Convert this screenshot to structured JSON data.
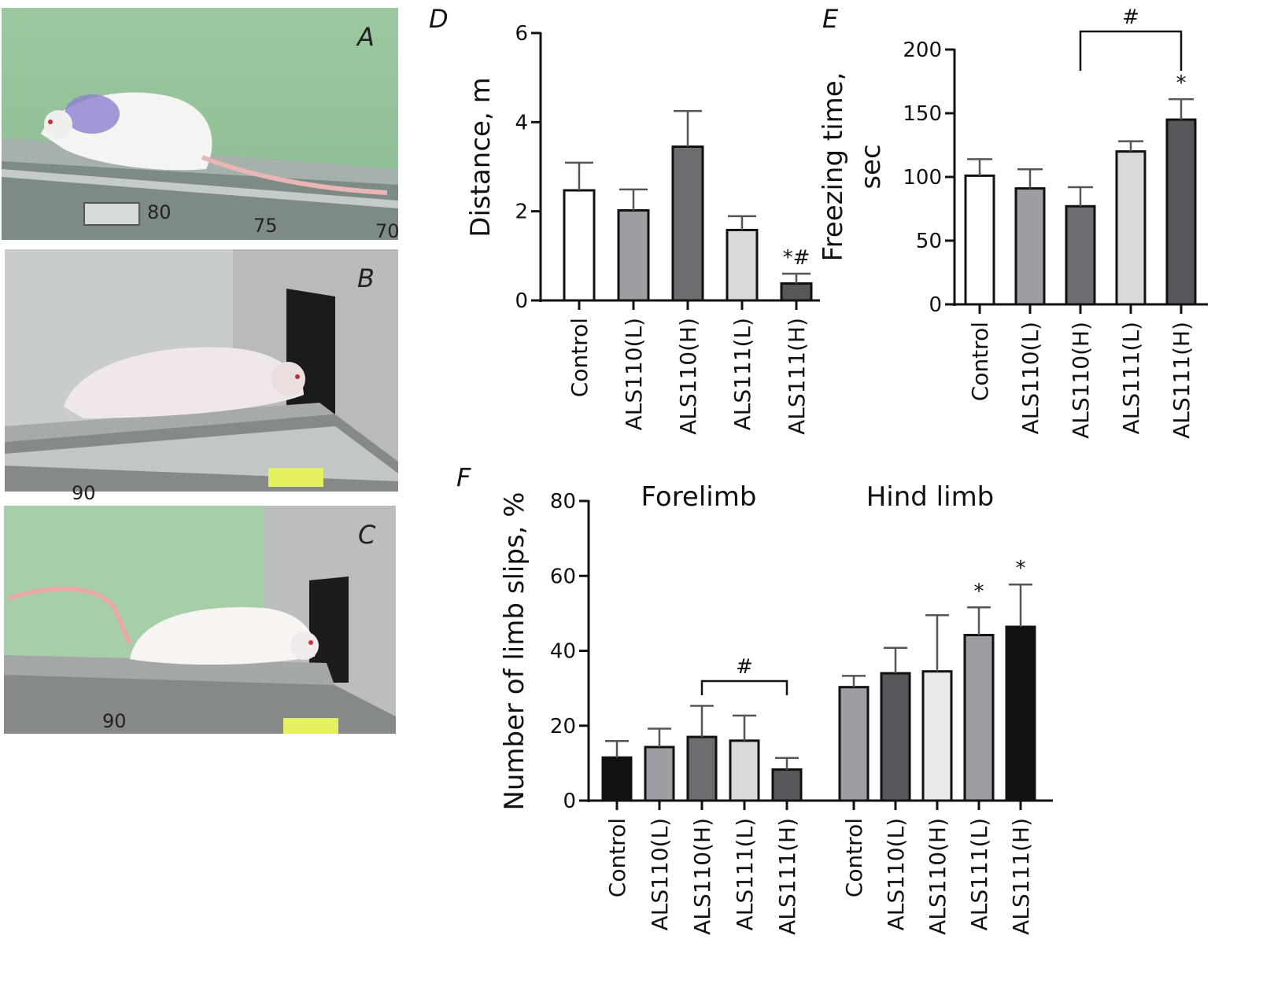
{
  "photos": [
    {
      "label": "A"
    },
    {
      "label": "B"
    },
    {
      "label": "C"
    }
  ],
  "photo_marks": {
    "a1": "80",
    "a2": "75",
    "a3": "70",
    "b1": "90",
    "c1": "90"
  },
  "colors": {
    "white": "#ffffff",
    "mid_gray": "#9d9da3",
    "dark_gray": "#6e6e72",
    "light_gray": "#d9d9d9",
    "darker_gray": "#57575b",
    "black": "#111111"
  },
  "chart_data": [
    {
      "id": "D",
      "type": "bar",
      "panel_label": "D",
      "ylabel": "Distance, m",
      "ylim": [
        0,
        6
      ],
      "yticks": [
        0,
        2,
        4,
        6
      ],
      "categories": [
        "Control",
        "ALS110(L)",
        "ALS110(H)",
        "ALS111(L)",
        "ALS111(H)"
      ],
      "values": [
        2.47,
        2.02,
        3.45,
        1.58,
        0.38
      ],
      "errors": [
        0.62,
        0.47,
        0.8,
        0.31,
        0.22
      ],
      "bar_colors": [
        "#ffffff",
        "#9d9da3",
        "#6e6e72",
        "#d9d9d9",
        "#57575b"
      ],
      "annotations": [
        {
          "category": "ALS111(H)",
          "text": "*#"
        }
      ]
    },
    {
      "id": "E",
      "type": "bar",
      "panel_label": "E",
      "ylabel": "Freezing time, sec",
      "ylim": [
        0,
        200
      ],
      "yticks": [
        0,
        50,
        100,
        150,
        200
      ],
      "categories": [
        "Control",
        "ALS110(L)",
        "ALS110(H)",
        "ALS111(L)",
        "ALS111(H)"
      ],
      "values": [
        101,
        91,
        77,
        120,
        145
      ],
      "errors": [
        13,
        15,
        15,
        8,
        16
      ],
      "bar_colors": [
        "#ffffff",
        "#9d9da3",
        "#6e6e72",
        "#d9d9d9",
        "#57575b"
      ],
      "annotations": [
        {
          "category": "ALS111(H)",
          "text": "*"
        }
      ],
      "brackets": [
        {
          "from": "ALS110(H)",
          "to": "ALS111(H)",
          "text": "#"
        }
      ]
    },
    {
      "id": "F",
      "type": "bar",
      "panel_label": "F",
      "ylabel": "Number of limb slips, %",
      "ylim": [
        0,
        80
      ],
      "yticks": [
        0,
        20,
        40,
        60,
        80
      ],
      "groups": [
        {
          "title": "Forelimb",
          "categories": [
            "Control",
            "ALS110(L)",
            "ALS110(H)",
            "ALS111(L)",
            "ALS111(H)"
          ],
          "values": [
            11.5,
            14.3,
            17,
            16,
            8.3
          ],
          "errors": [
            4.4,
            4.9,
            8.3,
            6.7,
            3.1
          ],
          "bar_colors": [
            "#111111",
            "#9d9da3",
            "#6e6e72",
            "#d9d9d9",
            "#57575b"
          ],
          "annotations": [],
          "brackets": [
            {
              "from": "ALS110(H)",
              "to": "ALS111(H)",
              "text": "#"
            }
          ]
        },
        {
          "title": "Hind limb",
          "categories": [
            "Control",
            "ALS110(L)",
            "ALS110(H)",
            "ALS111(L)",
            "ALS111(H)"
          ],
          "values": [
            30.3,
            34,
            34.5,
            44.2,
            46.4
          ],
          "errors": [
            3,
            6.8,
            15,
            7.4,
            11.3
          ],
          "bar_colors": [
            "#9d9da3",
            "#57575b",
            "#eaeaea",
            "#9d9da3",
            "#111111"
          ],
          "annotations": [
            {
              "category": "ALS111(L)",
              "text": "*"
            },
            {
              "category": "ALS111(H)",
              "text": "*"
            }
          ],
          "brackets": []
        }
      ]
    }
  ]
}
